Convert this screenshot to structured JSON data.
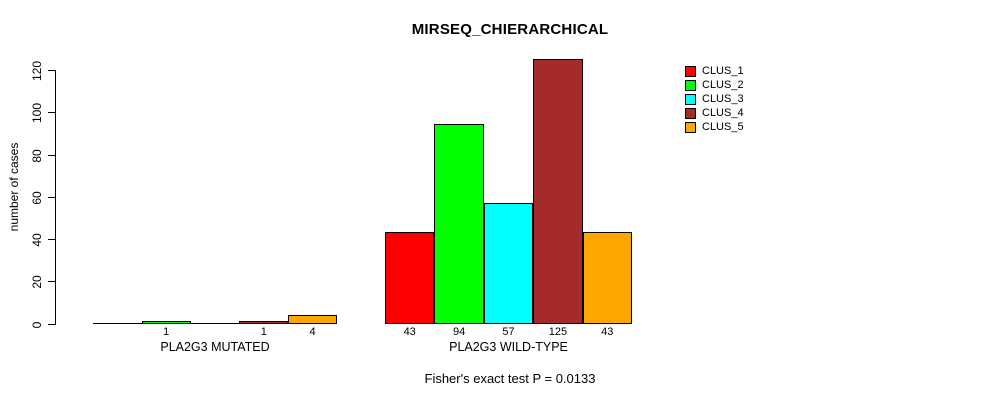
{
  "chart_data": {
    "type": "bar",
    "title": "MIRSEQ_CHIERARCHICAL",
    "ylabel": "number of cases",
    "xlabel": "",
    "ylim": [
      0,
      130
    ],
    "yticks": [
      0,
      20,
      40,
      60,
      80,
      100,
      120
    ],
    "grid": false,
    "legend_position": "top-right",
    "categories": [
      "PLA2G3 MUTATED",
      "PLA2G3 WILD-TYPE"
    ],
    "series": [
      {
        "name": "CLUS_1",
        "color": "#ff0000",
        "values": [
          0,
          43
        ]
      },
      {
        "name": "CLUS_2",
        "color": "#00ff00",
        "values": [
          1,
          94
        ]
      },
      {
        "name": "CLUS_3",
        "color": "#00ffff",
        "values": [
          0,
          57
        ]
      },
      {
        "name": "CLUS_4",
        "color": "#a52a2a",
        "values": [
          1,
          125
        ]
      },
      {
        "name": "CLUS_5",
        "color": "#ffa500",
        "values": [
          4,
          43
        ]
      }
    ],
    "bar_value_labels": [
      [
        "",
        "1",
        "",
        "1",
        "4"
      ],
      [
        "43",
        "94",
        "57",
        "125",
        "43"
      ]
    ],
    "annotation": "Fisher's exact test P = 0.0133"
  }
}
